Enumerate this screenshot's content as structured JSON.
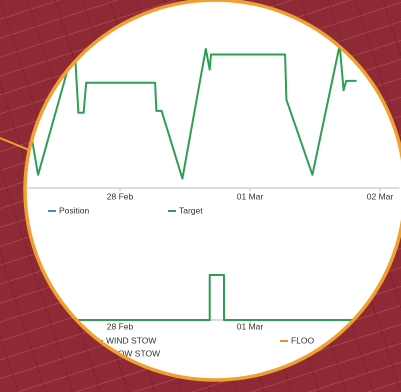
{
  "chart_data": [
    {
      "type": "line",
      "x": [
        -0.69,
        -0.63,
        -0.35,
        -0.32,
        -0.28,
        -0.26,
        0.27,
        0.28,
        0.32,
        0.48,
        0.66,
        0.69,
        0.7,
        1.27,
        1.28,
        1.48,
        1.69,
        1.72,
        1.74,
        1.82
      ],
      "xlim": [
        -0.9,
        2.15
      ],
      "ylim": [
        0,
        100
      ],
      "xticks": [
        {
          "value": 0,
          "label": "28 Feb"
        },
        {
          "value": 1,
          "label": "01 Mar"
        },
        {
          "value": 2,
          "label": "02 Mar"
        }
      ],
      "series": [
        {
          "name": "Position",
          "color": "#3a8fd6",
          "values": [
            null,
            null,
            null,
            null,
            null,
            null,
            null,
            null,
            null,
            null,
            null,
            null,
            null,
            null,
            null,
            null,
            null,
            null,
            null,
            null
          ]
        },
        {
          "name": "Target",
          "color": "#2f9e55",
          "values": [
            31,
            7,
            76,
            40,
            40,
            56,
            56,
            41,
            41,
            5,
            74,
            63,
            71,
            71,
            47,
            7,
            76,
            52,
            57,
            57
          ]
        }
      ]
    },
    {
      "type": "line",
      "x": [
        -0.9,
        0.69,
        0.69,
        0.8,
        0.8,
        2.15
      ],
      "xlim": [
        -0.9,
        2.15
      ],
      "ylim": [
        0,
        1
      ],
      "xticks": [
        {
          "value": 0,
          "label": "28 Feb"
        },
        {
          "value": 1,
          "label": "01 Mar"
        }
      ],
      "series": [
        {
          "name": "WIND STOW",
          "color": "#2f9e55",
          "values": [
            0,
            0,
            1,
            1,
            0,
            0
          ]
        },
        {
          "name": "SNOW STOW",
          "color": "#e8413a",
          "values": [
            null,
            null,
            null,
            null,
            null,
            null
          ]
        },
        {
          "name": "FLOO",
          "color": "#f08a24",
          "values": [
            null,
            null,
            null,
            null,
            null,
            null
          ]
        }
      ]
    }
  ]
}
